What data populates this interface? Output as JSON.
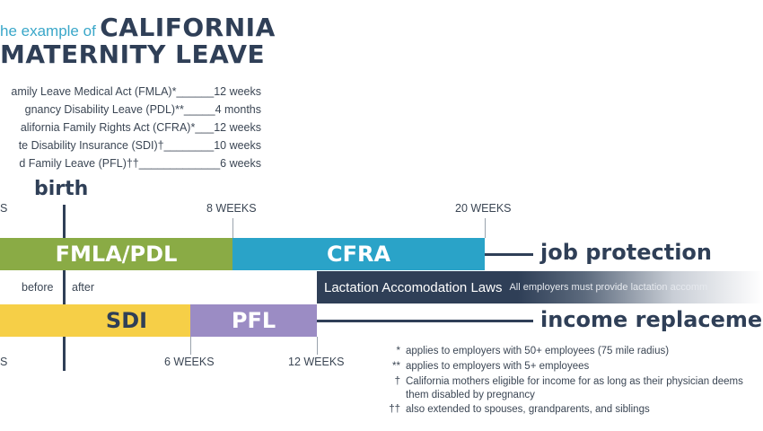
{
  "title": {
    "prefix": "he example of",
    "line1_bold": "CALIFORNIA",
    "line2_bold": "MATERNITY LEAVE"
  },
  "laws": [
    {
      "name": "amily Leave Medical Act (FMLA)*",
      "leader": "______",
      "duration": "12 weeks"
    },
    {
      "name": "gnancy Disability Leave (PDL)**",
      "leader": "_____",
      "duration": "4 months"
    },
    {
      "name": "alifornia Family Rights Act (CFRA)*",
      "leader": "___",
      "duration": "12 weeks"
    },
    {
      "name": "te Disability Insurance (SDI)†",
      "leader": "________",
      "duration": "10 weeks"
    },
    {
      "name": "d Family Leave (PFL)††",
      "leader": "_____________",
      "duration": "6 weeks"
    }
  ],
  "timeline": {
    "birth_label": "birth",
    "top_ticks": {
      "left_cut": "S",
      "t8": "8 WEEKS",
      "t20": "20 WEEKS"
    },
    "bottom_ticks": {
      "left_cut": "S",
      "t6": "6 WEEKS",
      "t12": "12 WEEKS"
    },
    "before_label": "before",
    "after_label": "after"
  },
  "bars": {
    "fmla_pdl": {
      "label": "FMLA/PDL",
      "color": "#8aab45"
    },
    "cfra": {
      "label": "CFRA",
      "color": "#2aa3c8"
    },
    "lactation": {
      "label": "Lactation Accomodation Laws",
      "note": "All employers must provide lactation accomm",
      "color": "#2f3f57"
    },
    "sdi": {
      "label": "SDI",
      "color": "#f6cf47"
    },
    "pfl": {
      "label": "PFL",
      "color": "#9b8cc4"
    }
  },
  "side_labels": {
    "job_protection": "job protection",
    "income_replacement": "income replaceme"
  },
  "footnotes": [
    {
      "mark": "*",
      "text": "applies to employers with 50+ employees (75 mile radius)"
    },
    {
      "mark": "**",
      "text": "applies to employers with 5+ employees"
    },
    {
      "mark": "†",
      "text": "California mothers eligible for income for as long as their physician deems them disabled by pregnancy"
    },
    {
      "mark": "††",
      "text": "also extended to spouses, grandparents, and siblings"
    }
  ]
}
